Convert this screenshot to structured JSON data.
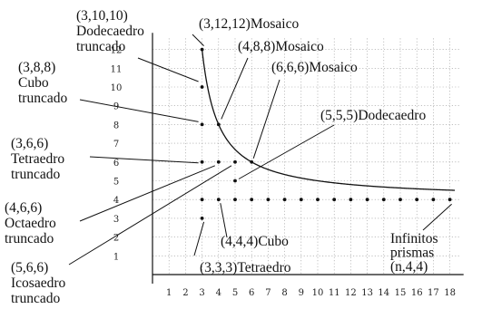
{
  "chart_data": {
    "type": "scatter",
    "x_ticks": [
      "1",
      "2",
      "3",
      "4",
      "5",
      "6",
      "7",
      "8",
      "9",
      "10",
      "11",
      "12",
      "13",
      "14",
      "15",
      "16",
      "17",
      "18"
    ],
    "y_ticks": [
      "1",
      "2",
      "3",
      "4",
      "5",
      "6",
      "7",
      "8",
      "9",
      "10",
      "11",
      "12"
    ],
    "xlim": [
      0,
      18.5
    ],
    "ylim": [
      0,
      12.5
    ],
    "grid": true,
    "curve": {
      "equation": "y = 4x/(x-2)",
      "asymptote": 4,
      "x_from": 3,
      "x_to": 18.3
    },
    "points": [
      {
        "x": 3,
        "y": 3
      },
      {
        "x": 3,
        "y": 4
      },
      {
        "x": 3,
        "y": 6
      },
      {
        "x": 3,
        "y": 8
      },
      {
        "x": 3,
        "y": 10
      },
      {
        "x": 3,
        "y": 12
      },
      {
        "x": 4,
        "y": 4
      },
      {
        "x": 4,
        "y": 6
      },
      {
        "x": 4,
        "y": 8
      },
      {
        "x": 5,
        "y": 4
      },
      {
        "x": 5,
        "y": 5
      },
      {
        "x": 5,
        "y": 6
      },
      {
        "x": 6,
        "y": 4
      },
      {
        "x": 6,
        "y": 6
      },
      {
        "x": 7,
        "y": 4
      },
      {
        "x": 8,
        "y": 4
      },
      {
        "x": 9,
        "y": 4
      },
      {
        "x": 10,
        "y": 4
      },
      {
        "x": 11,
        "y": 4
      },
      {
        "x": 12,
        "y": 4
      },
      {
        "x": 13,
        "y": 4
      },
      {
        "x": 14,
        "y": 4
      },
      {
        "x": 15,
        "y": 4
      },
      {
        "x": 16,
        "y": 4
      },
      {
        "x": 17,
        "y": 4
      },
      {
        "x": 18,
        "y": 4
      }
    ],
    "annotations": [
      {
        "lines": [
          "(3,10,10)",
          "Dodecaedro",
          "truncado"
        ]
      },
      {
        "lines": [
          "(3,12,12)Mosaico"
        ]
      },
      {
        "lines": [
          "(4,8,8)Mosaico"
        ]
      },
      {
        "lines": [
          "(3,8,8)",
          "Cubo",
          "truncado"
        ]
      },
      {
        "lines": [
          "(6,6,6)Mosaico"
        ]
      },
      {
        "lines": [
          "(5,5,5)Dodecaedro"
        ]
      },
      {
        "lines": [
          "(3,6,6)",
          "Tetraedro",
          "truncado"
        ]
      },
      {
        "lines": [
          "(4,6,6)",
          "Octaedro",
          "truncado"
        ]
      },
      {
        "lines": [
          "(4,4,4)Cubo"
        ]
      },
      {
        "lines": [
          "Infinitos",
          "prismas",
          "(n,4,4)"
        ]
      },
      {
        "lines": [
          "(5,6,6)",
          "Icosaedro",
          "truncado"
        ]
      },
      {
        "lines": [
          "(3,3,3)Tetraedro"
        ]
      }
    ]
  }
}
